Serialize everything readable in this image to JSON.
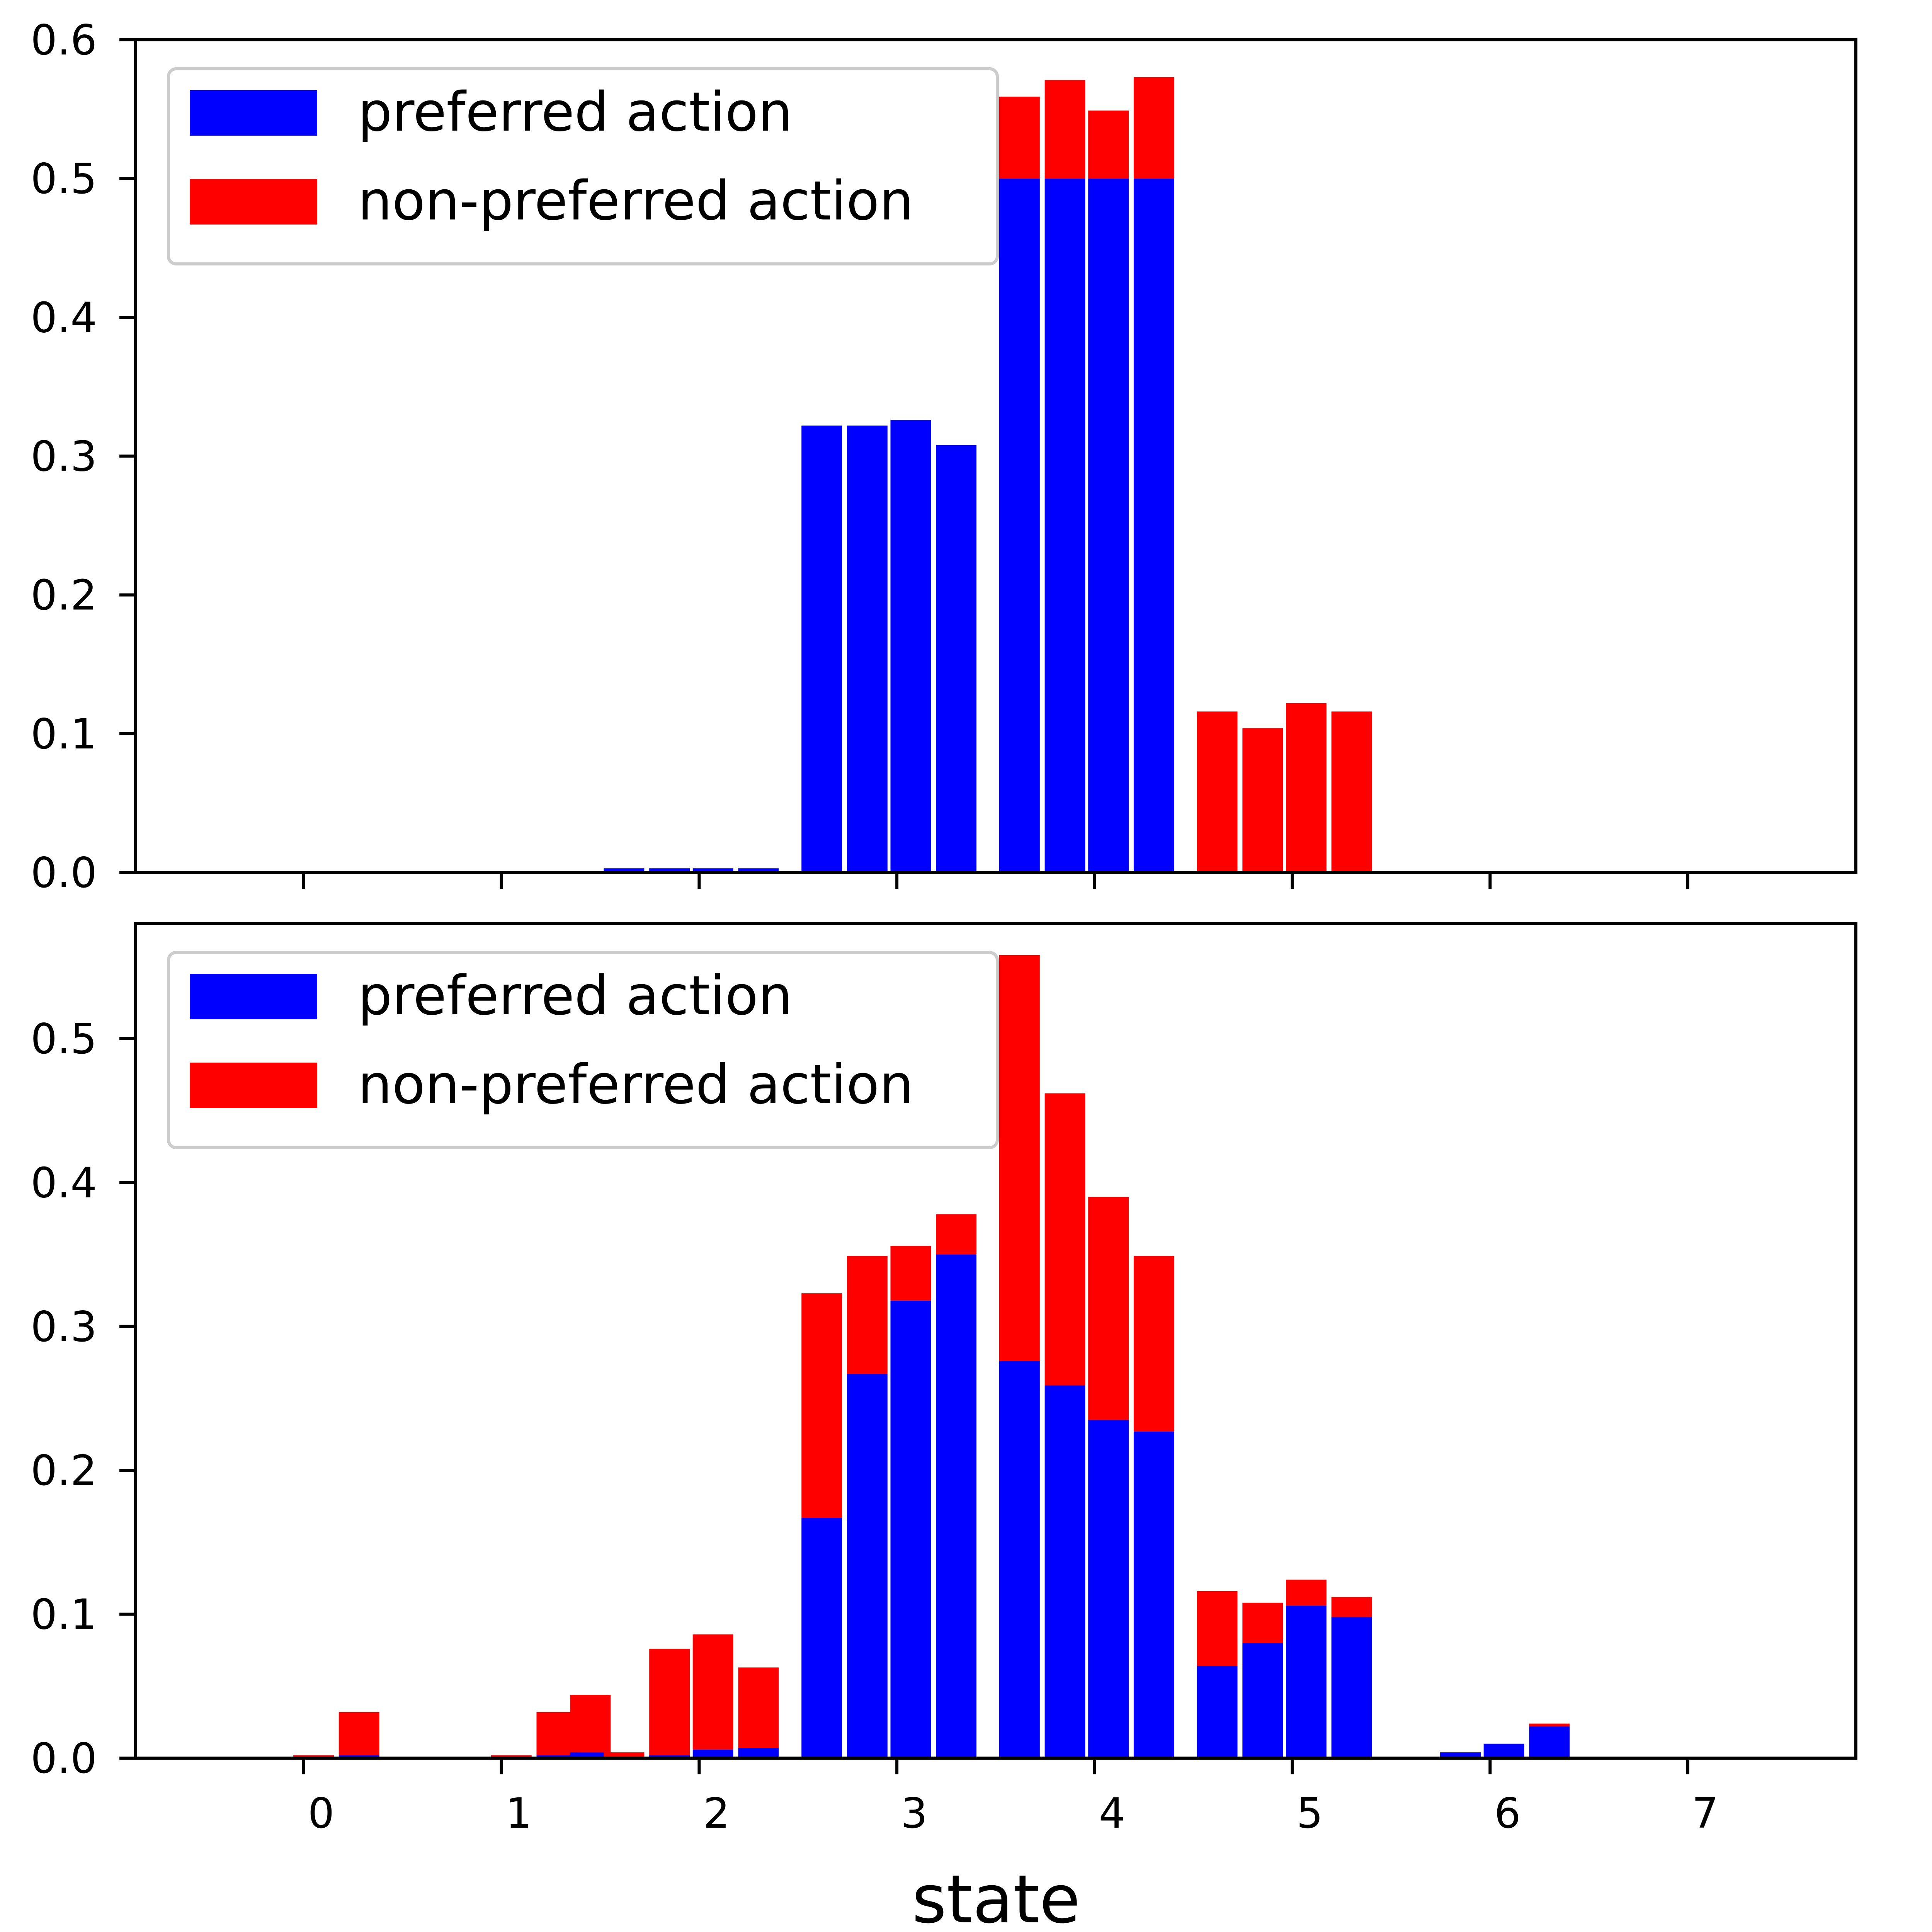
{
  "chart_data": [
    {
      "type": "bar",
      "stacked": true,
      "xlabel": "",
      "ylabel": "",
      "xlim": [
        -0.85,
        7.85
      ],
      "ylim": [
        0,
        0.6
      ],
      "x_tick_values": [
        0,
        1,
        2,
        3,
        4,
        5,
        6,
        7
      ],
      "x_tick_labels_shown": false,
      "y_ticks": [
        "0.0",
        "0.1",
        "0.2",
        "0.3",
        "0.4",
        "0.5",
        "0.6"
      ],
      "legend_placement": "upper-left",
      "series": [
        {
          "name": "preferred action",
          "color": "#0000ff",
          "points": [
            {
              "x": 0.05,
              "y": 0.0
            },
            {
              "x": 0.28,
              "y": 0.0
            },
            {
              "x": 1.05,
              "y": 0.0
            },
            {
              "x": 1.28,
              "y": 0.0
            },
            {
              "x": 1.62,
              "y": 0.003
            },
            {
              "x": 1.85,
              "y": 0.003
            },
            {
              "x": 2.07,
              "y": 0.003
            },
            {
              "x": 2.3,
              "y": 0.003
            },
            {
              "x": 2.62,
              "y": 0.322
            },
            {
              "x": 2.85,
              "y": 0.322
            },
            {
              "x": 3.07,
              "y": 0.326
            },
            {
              "x": 3.3,
              "y": 0.308
            },
            {
              "x": 3.62,
              "y": 0.5
            },
            {
              "x": 3.85,
              "y": 0.5
            },
            {
              "x": 4.07,
              "y": 0.5
            },
            {
              "x": 4.3,
              "y": 0.5
            },
            {
              "x": 4.62,
              "y": 0.0
            },
            {
              "x": 4.85,
              "y": 0.0
            },
            {
              "x": 5.07,
              "y": 0.0
            },
            {
              "x": 5.3,
              "y": 0.0
            }
          ]
        },
        {
          "name": "non-preferred action",
          "color": "#ff0000",
          "points": [
            {
              "x": 0.05,
              "y": 0.0
            },
            {
              "x": 0.28,
              "y": 0.0
            },
            {
              "x": 1.05,
              "y": 0.0
            },
            {
              "x": 1.28,
              "y": 0.0
            },
            {
              "x": 1.62,
              "y": 0.0
            },
            {
              "x": 1.85,
              "y": 0.0
            },
            {
              "x": 2.07,
              "y": 0.0
            },
            {
              "x": 2.3,
              "y": 0.0
            },
            {
              "x": 2.62,
              "y": 0.0
            },
            {
              "x": 2.85,
              "y": 0.0
            },
            {
              "x": 3.07,
              "y": 0.0
            },
            {
              "x": 3.3,
              "y": 0.0
            },
            {
              "x": 3.62,
              "y": 0.059
            },
            {
              "x": 3.85,
              "y": 0.071
            },
            {
              "x": 4.07,
              "y": 0.049
            },
            {
              "x": 4.3,
              "y": 0.073
            },
            {
              "x": 4.62,
              "y": 0.116
            },
            {
              "x": 4.85,
              "y": 0.104
            },
            {
              "x": 5.07,
              "y": 0.122
            },
            {
              "x": 5.3,
              "y": 0.116
            }
          ]
        }
      ]
    },
    {
      "type": "bar",
      "stacked": true,
      "xlabel": "state",
      "ylabel": "",
      "xlim": [
        -0.85,
        7.85
      ],
      "ylim": [
        0,
        0.58
      ],
      "x_tick_values": [
        0,
        1,
        2,
        3,
        4,
        5,
        6,
        7
      ],
      "x_ticks": [
        "0",
        "1",
        "2",
        "3",
        "4",
        "5",
        "6",
        "7"
      ],
      "y_ticks": [
        "0.0",
        "0.1",
        "0.2",
        "0.3",
        "0.4",
        "0.5"
      ],
      "legend_placement": "upper-left",
      "series": [
        {
          "name": "preferred action",
          "color": "#0000ff",
          "points": [
            {
              "x": 0.05,
              "y": 0.0
            },
            {
              "x": 0.28,
              "y": 0.002
            },
            {
              "x": 1.05,
              "y": 0.0
            },
            {
              "x": 1.28,
              "y": 0.002
            },
            {
              "x": 1.45,
              "y": 0.004
            },
            {
              "x": 1.62,
              "y": 0.0
            },
            {
              "x": 1.85,
              "y": 0.002
            },
            {
              "x": 2.07,
              "y": 0.006
            },
            {
              "x": 2.3,
              "y": 0.007
            },
            {
              "x": 2.62,
              "y": 0.167
            },
            {
              "x": 2.85,
              "y": 0.267
            },
            {
              "x": 3.07,
              "y": 0.318
            },
            {
              "x": 3.3,
              "y": 0.35
            },
            {
              "x": 3.62,
              "y": 0.276
            },
            {
              "x": 3.85,
              "y": 0.259
            },
            {
              "x": 4.07,
              "y": 0.235
            },
            {
              "x": 4.3,
              "y": 0.227
            },
            {
              "x": 4.62,
              "y": 0.064
            },
            {
              "x": 4.85,
              "y": 0.08
            },
            {
              "x": 5.07,
              "y": 0.106
            },
            {
              "x": 5.3,
              "y": 0.098
            },
            {
              "x": 5.85,
              "y": 0.004
            },
            {
              "x": 6.07,
              "y": 0.01
            },
            {
              "x": 6.3,
              "y": 0.022
            }
          ]
        },
        {
          "name": "non-preferred action",
          "color": "#ff0000",
          "points": [
            {
              "x": 0.05,
              "y": 0.002
            },
            {
              "x": 0.28,
              "y": 0.03
            },
            {
              "x": 1.05,
              "y": 0.002
            },
            {
              "x": 1.28,
              "y": 0.03
            },
            {
              "x": 1.45,
              "y": 0.04
            },
            {
              "x": 1.62,
              "y": 0.004
            },
            {
              "x": 1.85,
              "y": 0.074
            },
            {
              "x": 2.07,
              "y": 0.08
            },
            {
              "x": 2.3,
              "y": 0.056
            },
            {
              "x": 2.62,
              "y": 0.156
            },
            {
              "x": 2.85,
              "y": 0.082
            },
            {
              "x": 3.07,
              "y": 0.038
            },
            {
              "x": 3.3,
              "y": 0.028
            },
            {
              "x": 3.62,
              "y": 0.282
            },
            {
              "x": 3.85,
              "y": 0.203
            },
            {
              "x": 4.07,
              "y": 0.155
            },
            {
              "x": 4.3,
              "y": 0.122
            },
            {
              "x": 4.62,
              "y": 0.052
            },
            {
              "x": 4.85,
              "y": 0.028
            },
            {
              "x": 5.07,
              "y": 0.018
            },
            {
              "x": 5.3,
              "y": 0.014
            },
            {
              "x": 5.85,
              "y": 0.0
            },
            {
              "x": 6.07,
              "y": 0.0
            },
            {
              "x": 6.3,
              "y": 0.002
            }
          ]
        }
      ]
    }
  ]
}
